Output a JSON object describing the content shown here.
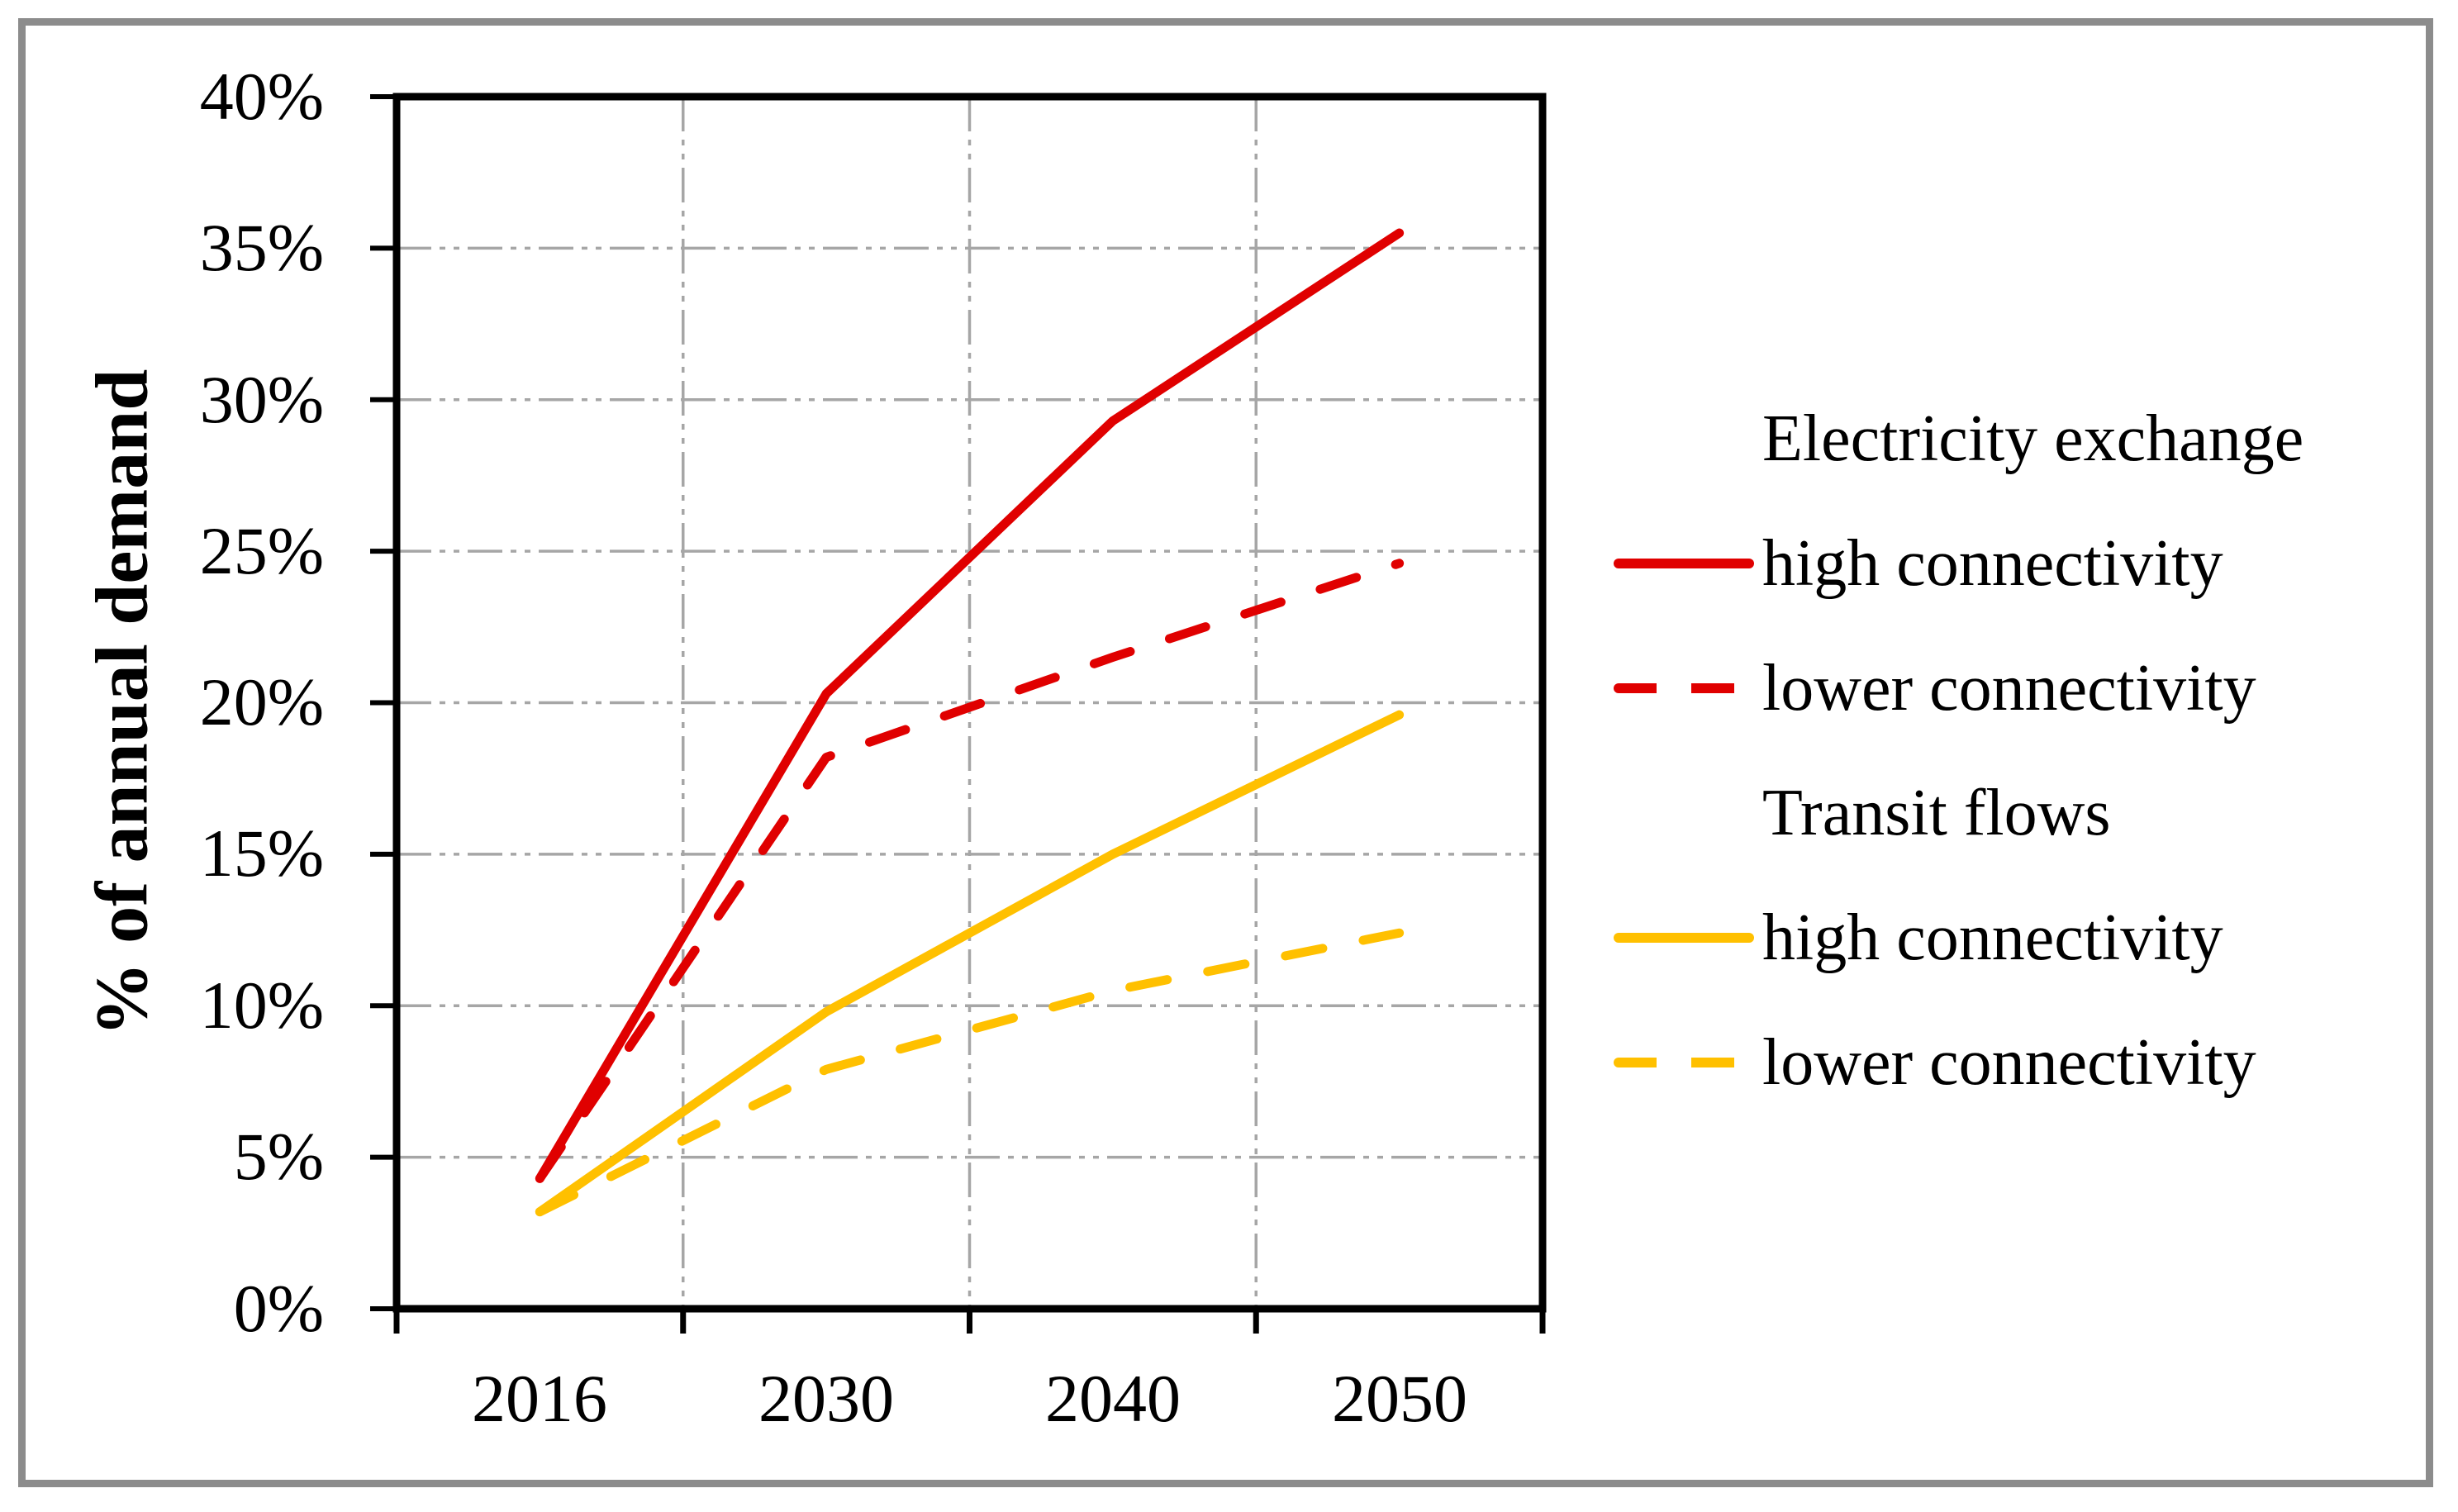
{
  "figure": {
    "background": "#ffffff",
    "border_color": "#8c8c8c"
  },
  "y_axis": {
    "title": "% of annual demand",
    "tick_labels": [
      "40%",
      "35%",
      "30%",
      "25%",
      "20%",
      "15%",
      "10%",
      "5%",
      "0%"
    ]
  },
  "x_axis": {
    "tick_labels": [
      "2016",
      "2030",
      "2040",
      "2050"
    ]
  },
  "legend": {
    "sections": [
      {
        "header": "Electricity exchange",
        "items": [
          {
            "label": "high connectivity",
            "style": "solid",
            "color": "#e00000"
          },
          {
            "label": "lower connectivity",
            "style": "dashed",
            "color": "#e00000"
          }
        ]
      },
      {
        "header": "Transit flows",
        "items": [
          {
            "label": "high connectivity",
            "style": "solid",
            "color": "#ffc000"
          },
          {
            "label": "lower connectivity",
            "style": "dashed",
            "color": "#ffc000"
          }
        ]
      }
    ]
  },
  "chart_data": {
    "type": "line",
    "title": "",
    "xlabel": "",
    "ylabel": "% of annual demand",
    "categories": [
      "2016",
      "2030",
      "2040",
      "2050"
    ],
    "series": [
      {
        "name": "Electricity exchange high connectivity",
        "group": "Electricity exchange",
        "label": "high connectivity",
        "style": "solid",
        "color": "#e00000",
        "values": [
          4.3,
          20.3,
          29.3,
          35.5
        ]
      },
      {
        "name": "Electricity exchange lower connectivity",
        "group": "Electricity exchange",
        "label": "lower connectivity",
        "style": "dashed",
        "color": "#e00000",
        "values": [
          4.3,
          18.2,
          21.5,
          24.6
        ]
      },
      {
        "name": "Transit flows high connectivity",
        "group": "Transit flows",
        "label": "high connectivity",
        "style": "solid",
        "color": "#ffc000",
        "values": [
          3.2,
          9.8,
          15.0,
          19.6
        ]
      },
      {
        "name": "Transit flows lower connectivity",
        "group": "Transit flows",
        "label": "lower connectivity",
        "style": "dashed",
        "color": "#ffc000",
        "values": [
          3.2,
          7.9,
          10.5,
          12.4
        ]
      }
    ],
    "ylim": [
      0,
      40
    ],
    "ytick_step": 5,
    "grid": true,
    "gridline_color": "#a6a6a6",
    "axis_color": "#000000",
    "legend_position": "right"
  }
}
